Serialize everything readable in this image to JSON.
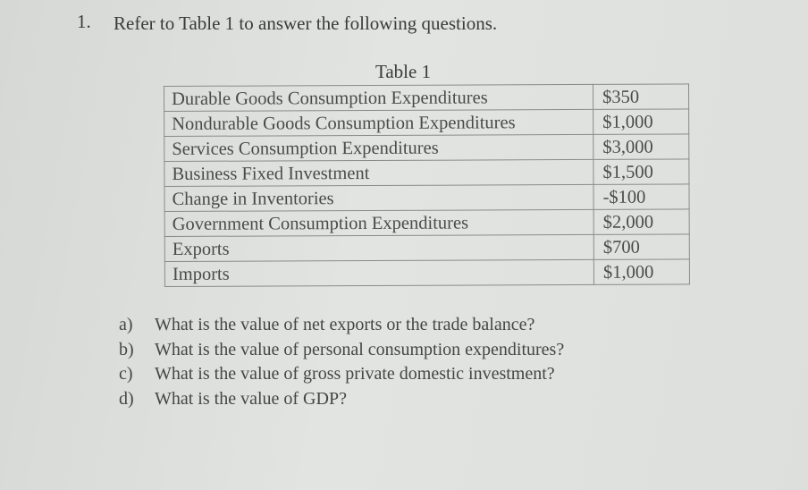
{
  "question_number": "1.",
  "heading": "Refer to Table 1 to answer the following questions.",
  "table": {
    "caption": "Table 1",
    "rows": [
      {
        "label": "Durable Goods Consumption Expenditures",
        "value": "$350"
      },
      {
        "label": "Nondurable Goods Consumption Expenditures",
        "value": "$1,000"
      },
      {
        "label": "Services Consumption Expenditures",
        "value": "$3,000"
      },
      {
        "label": "Business Fixed Investment",
        "value": "$1,500"
      },
      {
        "label": "Change in Inventories",
        "value": "-$100"
      },
      {
        "label": "Government Consumption Expenditures",
        "value": "$2,000"
      },
      {
        "label": "Exports",
        "value": "$700"
      },
      {
        "label": "Imports",
        "value": "$1,000"
      }
    ]
  },
  "questions": [
    {
      "letter": "a)",
      "text": "What is the value of net exports or the trade balance?"
    },
    {
      "letter": "b)",
      "text": "What is the value of personal consumption expenditures?"
    },
    {
      "letter": "c)",
      "text": "What is the value of gross private domestic investment?"
    },
    {
      "letter": "d)",
      "text": "What is the value of GDP?"
    }
  ]
}
